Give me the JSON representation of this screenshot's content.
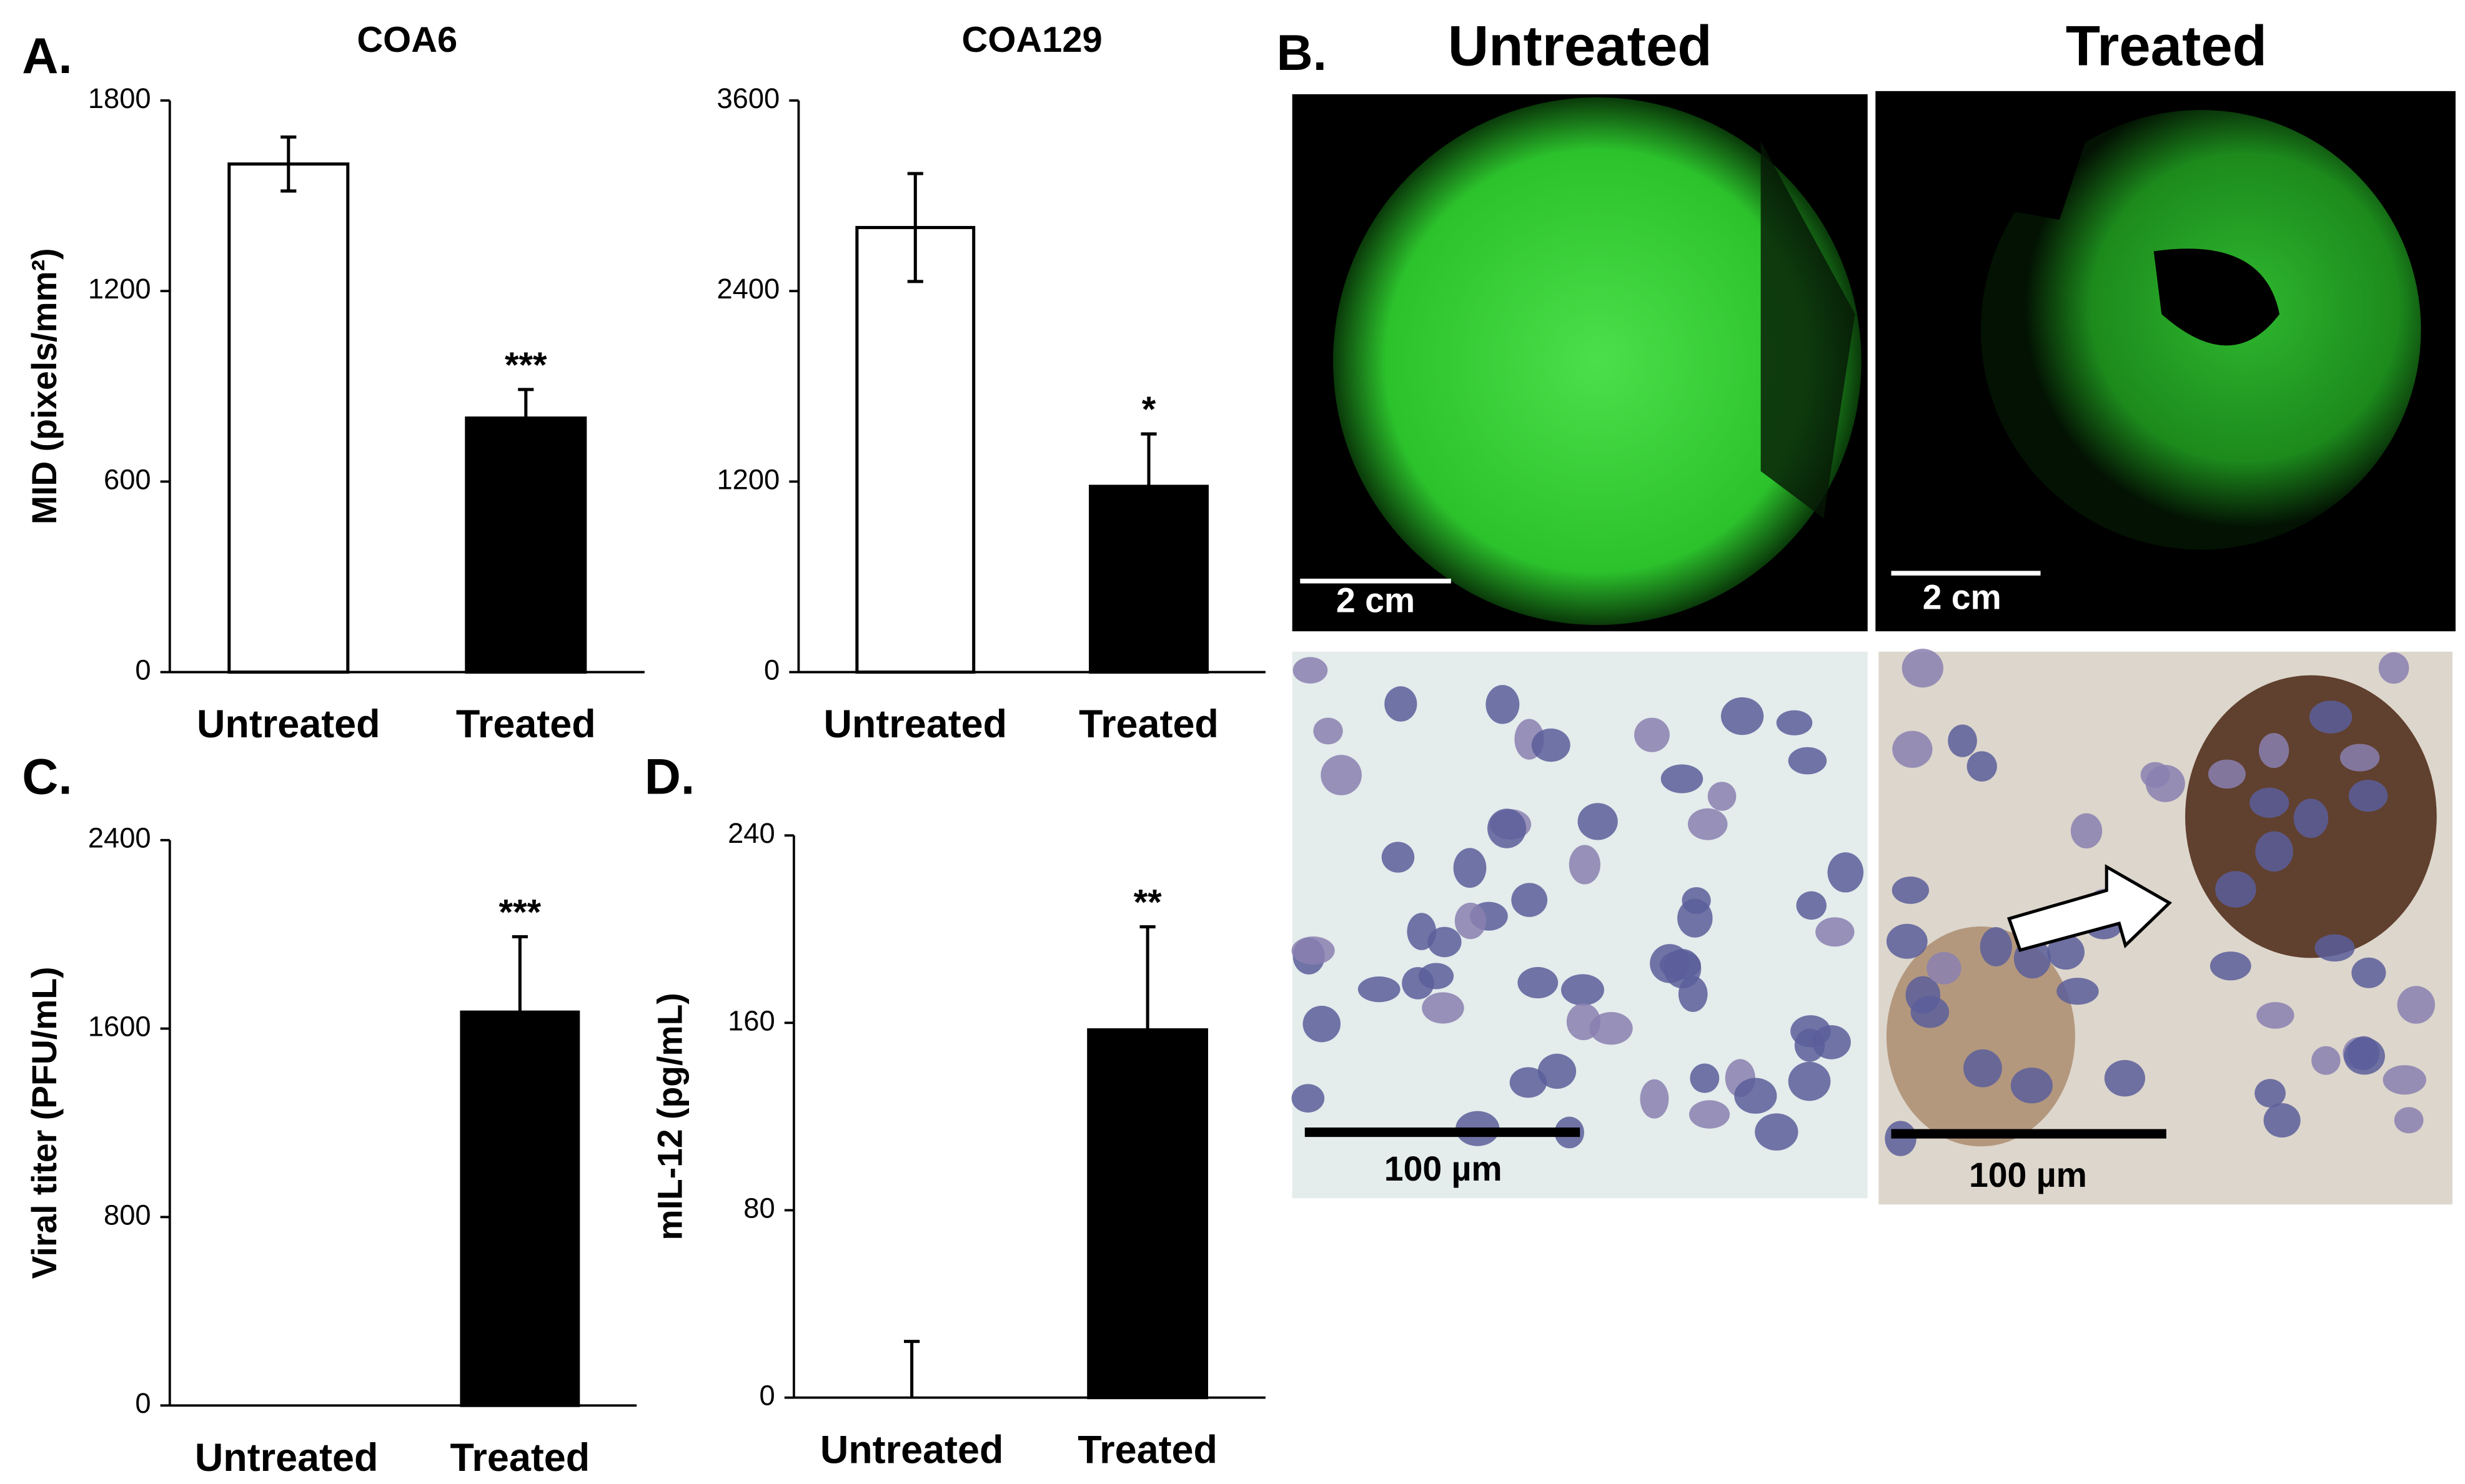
{
  "panels": {
    "a": "A.",
    "b": "B.",
    "c": "C.",
    "d": "D."
  },
  "images": {
    "headers": [
      "Untreated",
      "Treated"
    ],
    "scale_top": [
      "2 cm",
      "2 cm"
    ],
    "scale_bottom": [
      "100 µm",
      "100 µm"
    ]
  },
  "chart_data": [
    {
      "type": "bar",
      "title": "COA6",
      "y_label": "MID (pixels/mm²)",
      "categories": [
        "Untreated",
        "Treated"
      ],
      "values": [
        1600,
        800
      ],
      "errors": [
        85,
        90
      ],
      "colors": [
        "#ffffff",
        "#000000"
      ],
      "annotations": [
        {
          "category": "Treated",
          "text": "***"
        }
      ],
      "ylim": [
        0,
        1800
      ],
      "yticks": [
        0,
        600,
        1200,
        1800
      ]
    },
    {
      "type": "bar",
      "title": "COA129",
      "categories": [
        "Untreated",
        "Treated"
      ],
      "values": [
        2800,
        1170
      ],
      "errors": [
        340,
        330
      ],
      "colors": [
        "#ffffff",
        "#000000"
      ],
      "annotations": [
        {
          "category": "Treated",
          "text": "*"
        }
      ],
      "ylim": [
        0,
        3600
      ],
      "yticks": [
        0,
        1200,
        2400,
        3600
      ]
    },
    {
      "type": "bar",
      "y_label": "Viral titer (PFU/mL)",
      "categories": [
        "Untreated",
        "Treated"
      ],
      "values": [
        0,
        1670
      ],
      "errors": [
        0,
        320
      ],
      "colors": [
        "#ffffff",
        "#000000"
      ],
      "annotations": [
        {
          "category": "Treated",
          "text": "***"
        }
      ],
      "ylim": [
        0,
        2400
      ],
      "yticks": [
        0,
        800,
        1600,
        2400
      ]
    },
    {
      "type": "bar",
      "y_label": "mIL-12 (pg/mL)",
      "categories": [
        "Untreated",
        "Treated"
      ],
      "values": [
        0,
        157
      ],
      "errors": [
        24,
        44
      ],
      "colors": [
        "#ffffff",
        "#000000"
      ],
      "annotations": [
        {
          "category": "Treated",
          "text": "**"
        }
      ],
      "ylim": [
        0,
        240
      ],
      "yticks": [
        0,
        80,
        160,
        240
      ]
    }
  ]
}
